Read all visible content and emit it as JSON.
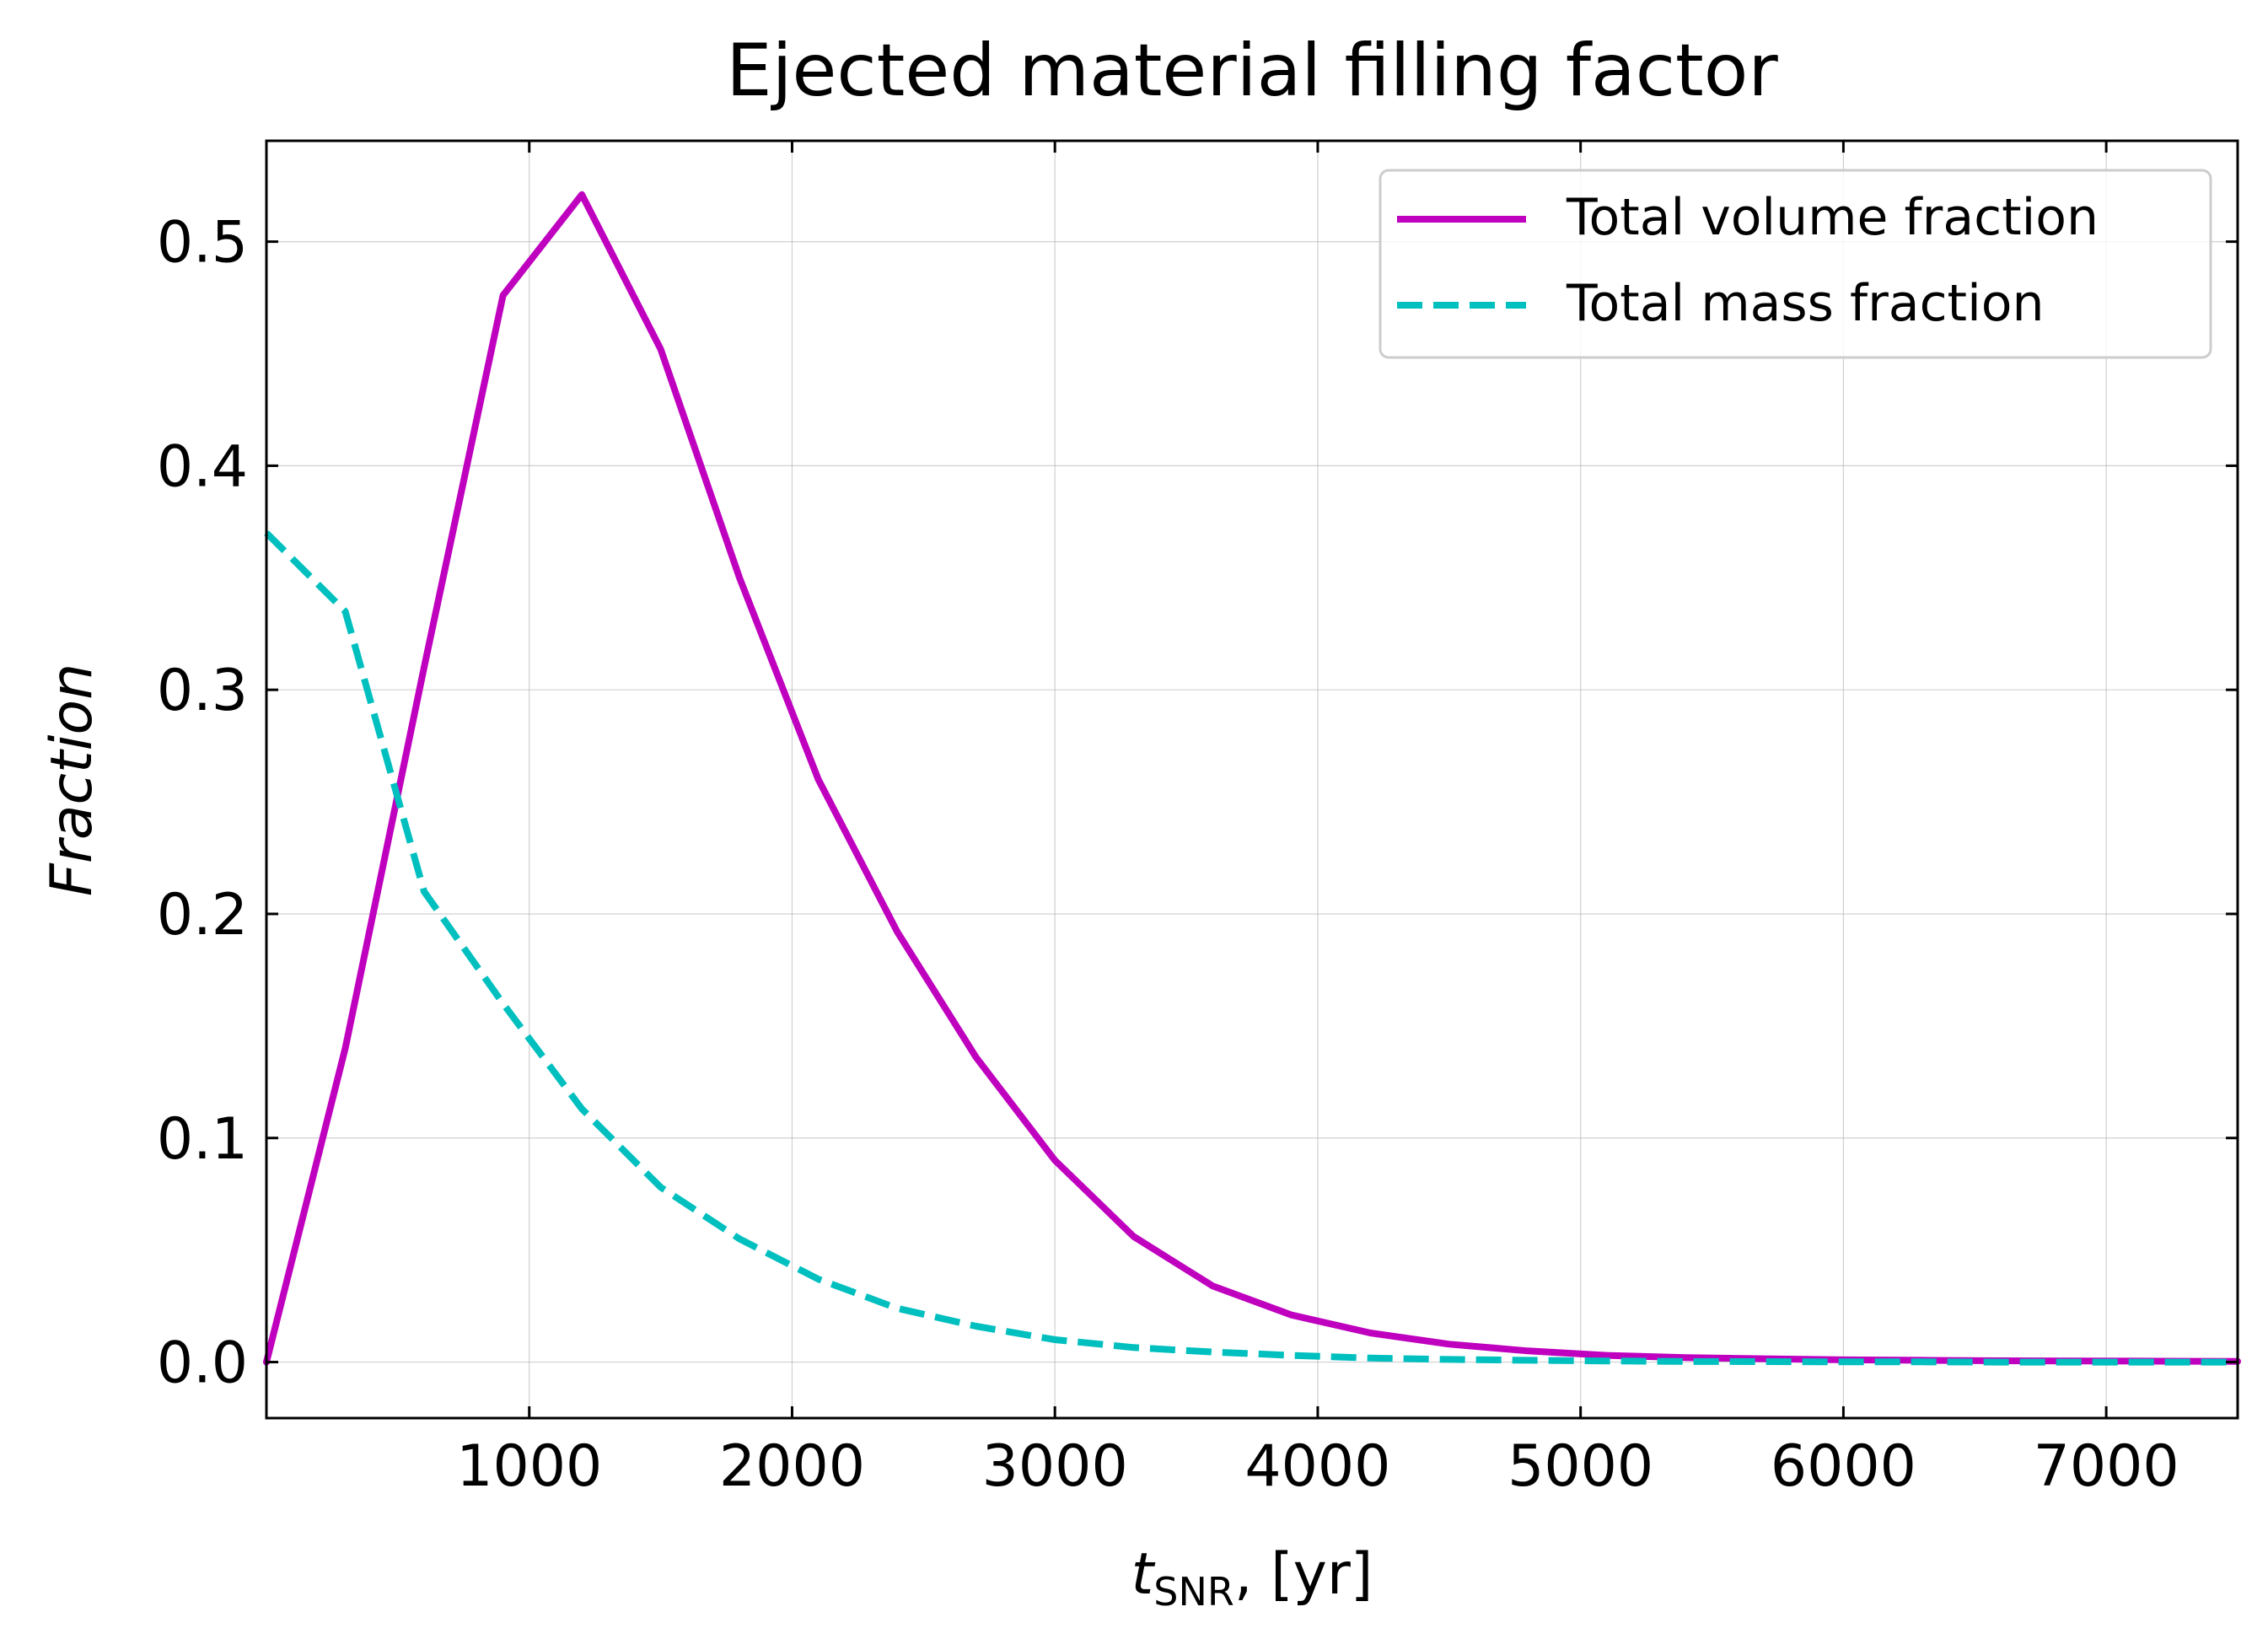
{
  "chart_data": {
    "type": "line",
    "title": "Ejected material filling factor",
    "xlabel_main": "t",
    "xlabel_sub": "SNR",
    "xlabel_rest": ", [yr]",
    "ylabel": "Fraction",
    "xlim": [
      0,
      7500
    ],
    "ylim": [
      -0.025,
      0.545
    ],
    "x_ticks": [
      {
        "value": 1000,
        "label": "1000"
      },
      {
        "value": 2000,
        "label": "2000"
      },
      {
        "value": 3000,
        "label": "3000"
      },
      {
        "value": 4000,
        "label": "4000"
      },
      {
        "value": 5000,
        "label": "5000"
      },
      {
        "value": 6000,
        "label": "6000"
      },
      {
        "value": 7000,
        "label": "7000"
      }
    ],
    "y_ticks": [
      {
        "value": 0.0,
        "label": "0.0"
      },
      {
        "value": 0.1,
        "label": "0.1"
      },
      {
        "value": 0.2,
        "label": "0.2"
      },
      {
        "value": 0.3,
        "label": "0.3"
      },
      {
        "value": 0.4,
        "label": "0.4"
      },
      {
        "value": 0.5,
        "label": "0.5"
      }
    ],
    "grid": true,
    "legend_position": "top-right",
    "x": [
      0,
      300,
      600,
      900,
      1200,
      1500,
      1800,
      2100,
      2400,
      2700,
      3000,
      3300,
      3600,
      3900,
      4200,
      4500,
      4800,
      5100,
      5400,
      5700,
      6000,
      6300,
      6600,
      6900,
      7200,
      7500
    ],
    "series": [
      {
        "name": "Total volume fraction",
        "color": "#bf00bf",
        "style": "solid",
        "values": [
          0.0,
          0.14,
          0.31,
          0.476,
          0.521,
          0.452,
          0.35,
          0.26,
          0.192,
          0.136,
          0.09,
          0.056,
          0.034,
          0.021,
          0.013,
          0.008,
          0.005,
          0.003,
          0.002,
          0.0015,
          0.001,
          0.0008,
          0.0006,
          0.0005,
          0.0004,
          0.0003
        ]
      },
      {
        "name": "Total mass fraction",
        "color": "#00bfbf",
        "style": "dashed",
        "values": [
          0.37,
          0.335,
          0.21,
          0.16,
          0.113,
          0.078,
          0.055,
          0.037,
          0.024,
          0.016,
          0.01,
          0.0065,
          0.0045,
          0.003,
          0.0018,
          0.0012,
          0.0008,
          0.0005,
          0.0003,
          0.0002,
          0.0001,
          0.0001,
          0.0,
          0.0,
          0.0,
          0.0
        ]
      }
    ]
  }
}
